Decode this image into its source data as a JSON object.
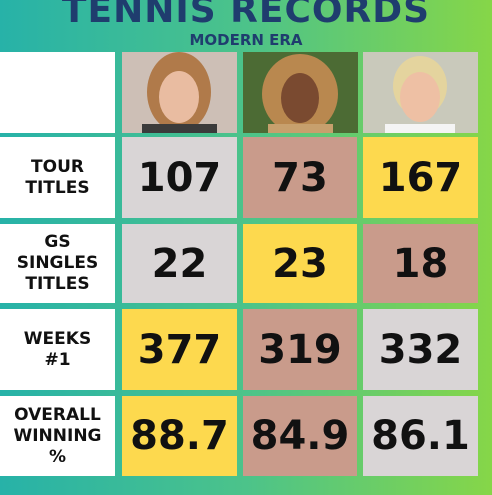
{
  "header": {
    "title": "TENNIS RECORDS",
    "subtitle": "MODERN ERA"
  },
  "table": {
    "rows": [
      {
        "label": "TOUR TITLES",
        "values": [
          107,
          73,
          167
        ]
      },
      {
        "label": "GS SINGLES TITLES",
        "values": [
          22,
          23,
          18
        ]
      },
      {
        "label": "WEEKS #1",
        "values": [
          377,
          319,
          332
        ]
      },
      {
        "label": "OVERALL WINNING %",
        "values": [
          88.7,
          84.9,
          86.1
        ]
      }
    ]
  }
}
